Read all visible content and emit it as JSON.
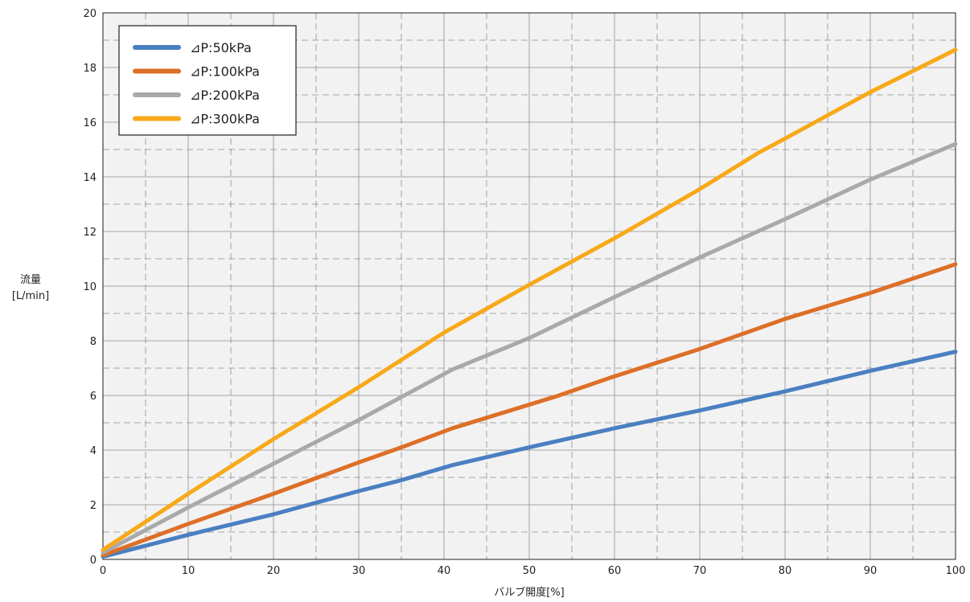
{
  "chart_data": {
    "type": "line",
    "xlabel": "バルブ開度[%]",
    "ylabel_line1": "流量",
    "ylabel_line2": "[L/min]",
    "xlim": [
      0,
      100
    ],
    "ylim": [
      0,
      20
    ],
    "x_ticks": [
      0,
      10,
      20,
      30,
      40,
      50,
      60,
      70,
      80,
      90,
      100
    ],
    "y_ticks": [
      0,
      2,
      4,
      6,
      8,
      10,
      12,
      14,
      16,
      18,
      20
    ],
    "grid": true,
    "legend_position": "top-left",
    "series": [
      {
        "name": "⊿P:50kPa",
        "color": "#4a7fc1",
        "points": [
          [
            0,
            0.1
          ],
          [
            10,
            0.9
          ],
          [
            20,
            1.65
          ],
          [
            30,
            2.5
          ],
          [
            35,
            2.9
          ],
          [
            41,
            3.45
          ],
          [
            50,
            4.1
          ],
          [
            60,
            4.8
          ],
          [
            70,
            5.45
          ],
          [
            80,
            6.15
          ],
          [
            90,
            6.9
          ],
          [
            100,
            7.6
          ]
        ]
      },
      {
        "name": "⊿P:100kPa",
        "color": "#dd6f27",
        "points": [
          [
            0,
            0.15
          ],
          [
            10,
            1.3
          ],
          [
            20,
            2.4
          ],
          [
            30,
            3.55
          ],
          [
            35,
            4.1
          ],
          [
            41,
            4.8
          ],
          [
            53,
            5.95
          ],
          [
            60,
            6.7
          ],
          [
            70,
            7.7
          ],
          [
            80,
            8.8
          ],
          [
            90,
            9.75
          ],
          [
            100,
            10.8
          ]
        ]
      },
      {
        "name": "⊿P:200kPa",
        "color": "#a9a9a9",
        "points": [
          [
            0,
            0.25
          ],
          [
            10,
            1.9
          ],
          [
            20,
            3.5
          ],
          [
            30,
            5.1
          ],
          [
            41,
            6.95
          ],
          [
            50,
            8.1
          ],
          [
            53,
            8.55
          ],
          [
            60,
            9.6
          ],
          [
            70,
            11.05
          ],
          [
            80,
            12.45
          ],
          [
            90,
            13.9
          ],
          [
            100,
            15.2
          ]
        ]
      },
      {
        "name": "⊿P:300kPa",
        "color": "#f8a918",
        "points": [
          [
            0,
            0.35
          ],
          [
            10,
            2.4
          ],
          [
            20,
            4.4
          ],
          [
            30,
            6.3
          ],
          [
            40,
            8.3
          ],
          [
            50,
            10.05
          ],
          [
            60,
            11.75
          ],
          [
            70,
            13.55
          ],
          [
            77,
            14.9
          ],
          [
            80,
            15.4
          ],
          [
            90,
            17.1
          ],
          [
            100,
            18.65
          ]
        ]
      }
    ]
  }
}
